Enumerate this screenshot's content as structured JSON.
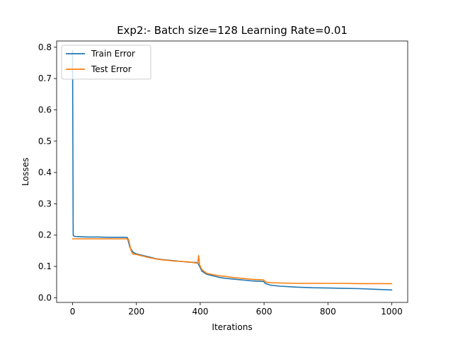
{
  "chart_data": {
    "type": "line",
    "title": "Exp2:- Batch size=128 Learning Rate=0.01",
    "xlabel": "Iterations",
    "ylabel": "Losses",
    "xlim": [
      -50,
      1050
    ],
    "ylim": [
      -0.015,
      0.82
    ],
    "xticks": [
      0,
      200,
      400,
      600,
      800,
      1000
    ],
    "yticks": [
      0.0,
      0.1,
      0.2,
      0.3,
      0.4,
      0.5,
      0.6,
      0.7,
      0.8
    ],
    "xtick_labels": [
      "0",
      "200",
      "400",
      "600",
      "800",
      "1000"
    ],
    "ytick_labels": [
      "0.0",
      "0.1",
      "0.2",
      "0.3",
      "0.4",
      "0.5",
      "0.6",
      "0.7",
      "0.8"
    ],
    "grid": false,
    "legend_position": "top-left",
    "series": [
      {
        "name": "Train Error",
        "color": "#1f77b4",
        "points": [
          [
            0,
            0.79
          ],
          [
            2,
            0.2
          ],
          [
            5,
            0.196
          ],
          [
            20,
            0.195
          ],
          [
            50,
            0.194
          ],
          [
            80,
            0.194
          ],
          [
            110,
            0.193
          ],
          [
            140,
            0.193
          ],
          [
            165,
            0.193
          ],
          [
            172,
            0.192
          ],
          [
            176,
            0.175
          ],
          [
            180,
            0.16
          ],
          [
            190,
            0.145
          ],
          [
            200,
            0.14
          ],
          [
            220,
            0.135
          ],
          [
            240,
            0.13
          ],
          [
            260,
            0.125
          ],
          [
            280,
            0.122
          ],
          [
            300,
            0.12
          ],
          [
            320,
            0.118
          ],
          [
            340,
            0.116
          ],
          [
            360,
            0.114
          ],
          [
            380,
            0.113
          ],
          [
            392,
            0.112
          ],
          [
            398,
            0.1
          ],
          [
            405,
            0.085
          ],
          [
            420,
            0.075
          ],
          [
            440,
            0.07
          ],
          [
            460,
            0.065
          ],
          [
            480,
            0.062
          ],
          [
            500,
            0.06
          ],
          [
            520,
            0.058
          ],
          [
            540,
            0.056
          ],
          [
            560,
            0.054
          ],
          [
            580,
            0.053
          ],
          [
            598,
            0.052
          ],
          [
            605,
            0.045
          ],
          [
            620,
            0.04
          ],
          [
            650,
            0.037
          ],
          [
            700,
            0.034
          ],
          [
            750,
            0.032
          ],
          [
            800,
            0.031
          ],
          [
            850,
            0.03
          ],
          [
            900,
            0.029
          ],
          [
            950,
            0.027
          ],
          [
            1000,
            0.025
          ]
        ]
      },
      {
        "name": "Test Error",
        "color": "#ff7f0e",
        "points": [
          [
            0,
            0.188
          ],
          [
            20,
            0.188
          ],
          [
            50,
            0.188
          ],
          [
            80,
            0.188
          ],
          [
            110,
            0.188
          ],
          [
            140,
            0.188
          ],
          [
            165,
            0.188
          ],
          [
            175,
            0.187
          ],
          [
            178,
            0.175
          ],
          [
            182,
            0.155
          ],
          [
            188,
            0.14
          ],
          [
            200,
            0.138
          ],
          [
            220,
            0.133
          ],
          [
            240,
            0.128
          ],
          [
            260,
            0.124
          ],
          [
            280,
            0.121
          ],
          [
            300,
            0.119
          ],
          [
            320,
            0.117
          ],
          [
            340,
            0.116
          ],
          [
            360,
            0.115
          ],
          [
            380,
            0.112
          ],
          [
            392,
            0.11
          ],
          [
            395,
            0.135
          ],
          [
            398,
            0.105
          ],
          [
            405,
            0.09
          ],
          [
            420,
            0.078
          ],
          [
            440,
            0.074
          ],
          [
            460,
            0.07
          ],
          [
            480,
            0.068
          ],
          [
            500,
            0.065
          ],
          [
            520,
            0.063
          ],
          [
            540,
            0.061
          ],
          [
            560,
            0.059
          ],
          [
            580,
            0.058
          ],
          [
            598,
            0.057
          ],
          [
            605,
            0.05
          ],
          [
            620,
            0.048
          ],
          [
            650,
            0.047
          ],
          [
            700,
            0.046
          ],
          [
            750,
            0.046
          ],
          [
            800,
            0.046
          ],
          [
            850,
            0.046
          ],
          [
            900,
            0.045
          ],
          [
            950,
            0.045
          ],
          [
            1000,
            0.045
          ]
        ]
      }
    ]
  }
}
